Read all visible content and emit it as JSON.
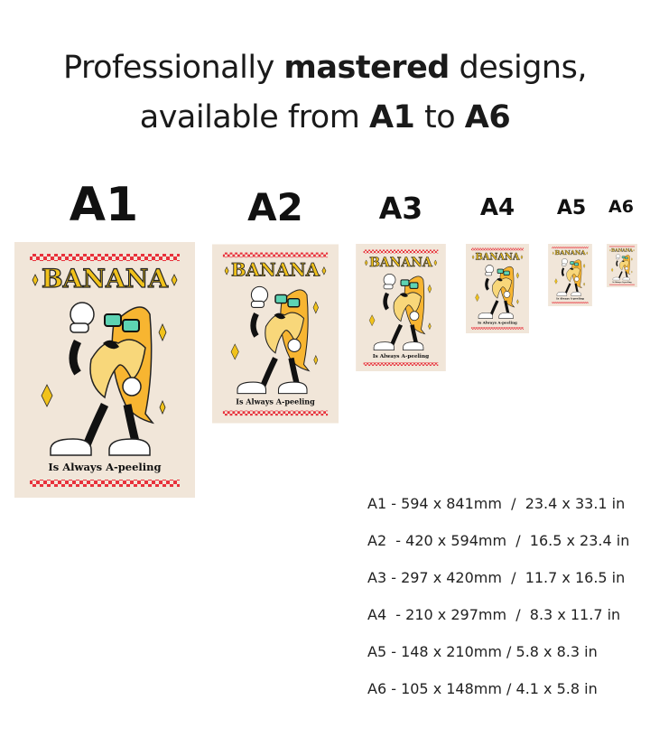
{
  "headline": {
    "line1_pre": "Professionally ",
    "line1_bold": "mastered",
    "line1_post": " designs,",
    "line2_pre": "available from ",
    "line2_bold1": "A1",
    "line2_mid": " to ",
    "line2_bold2": "A6"
  },
  "poster": {
    "title": "BANANA",
    "subtitle": "Is Always A-peeling",
    "colors": {
      "background": "#f1e6d9",
      "checker": "#e8323c",
      "title": "#f1c21b",
      "banana": "#f7b531",
      "peel": "#f8d77a"
    }
  },
  "sizes": [
    {
      "label": "A1",
      "spec": "A1 - 594 x 841mm  /  23.4 x 33.1 in"
    },
    {
      "label": "A2",
      "spec": "A2  - 420 x 594mm  /  16.5 x 23.4 in"
    },
    {
      "label": "A3",
      "spec": "A3 - 297 x 420mm  /  11.7 x 16.5 in"
    },
    {
      "label": "A4",
      "spec": "A4  - 210 x 297mm  /  8.3 x 11.7 in"
    },
    {
      "label": "A5",
      "spec": "A5 - 148 x 210mm / 5.8 x 8.3 in"
    },
    {
      "label": "A6",
      "spec": "A6 - 105 x 148mm / 4.1 x 5.8 in"
    }
  ]
}
